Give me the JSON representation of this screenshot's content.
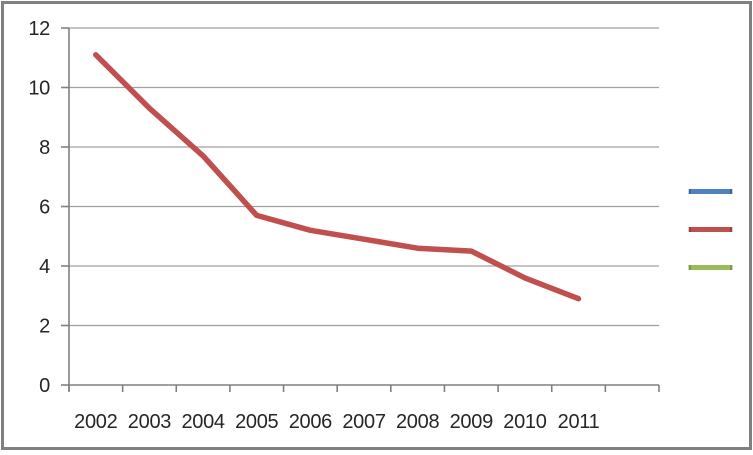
{
  "window": {
    "background": "#ffffff",
    "frame_border_color": "#808080"
  },
  "colors": {
    "gridline": "#a0a0a0",
    "axis": "#808080",
    "tick": "#808080",
    "label_text": "#262626",
    "series_red": "#C0504D",
    "legend_blue": "#4F81BD",
    "legend_green": "#9BBB59"
  },
  "chart_data": {
    "type": "line",
    "title": "",
    "xlabel": "",
    "ylabel": "",
    "categories": [
      "2002",
      "2003",
      "2004",
      "2005",
      "2006",
      "2007",
      "2008",
      "2009",
      "2010",
      "2011"
    ],
    "extra_empty_category_slots": 1,
    "series": [
      {
        "name": "",
        "color": "#C0504D",
        "values": [
          11.1,
          9.3,
          7.7,
          5.7,
          5.2,
          4.9,
          4.6,
          4.5,
          3.6,
          2.9
        ]
      }
    ],
    "ylim": [
      0,
      12
    ],
    "yticks": [
      0,
      2,
      4,
      6,
      8,
      10,
      12
    ],
    "ytick_labels": [
      "0",
      "2",
      "4",
      "6",
      "8",
      "10",
      "12"
    ],
    "grid": true,
    "legend": {
      "position": "right",
      "entries": [
        {
          "label": "",
          "color": "#4F81BD",
          "name": "legend-swatch-blue"
        },
        {
          "label": "",
          "color": "#C0504D",
          "name": "legend-swatch-red"
        },
        {
          "label": "",
          "color": "#9BBB59",
          "name": "legend-swatch-green"
        }
      ]
    }
  }
}
